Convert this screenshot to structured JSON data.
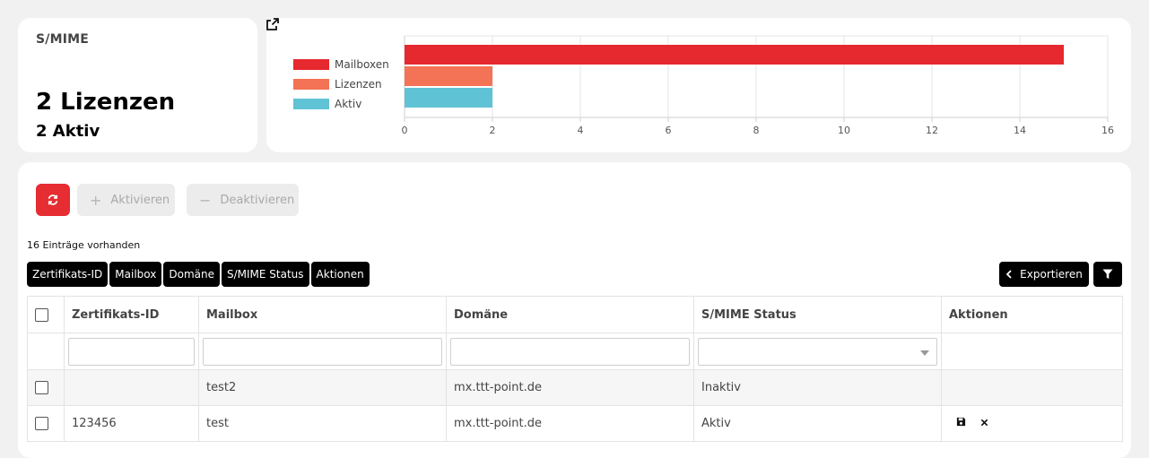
{
  "summary": {
    "label": "S/MIME",
    "licenses": "2 Lizenzen",
    "active": "2 Aktiv"
  },
  "chart_data": {
    "type": "bar",
    "orientation": "horizontal",
    "categories": [
      "Mailboxen",
      "Lizenzen",
      "Aktiv"
    ],
    "values": [
      15,
      2,
      2
    ],
    "colors": [
      "#e5292e",
      "#f47255",
      "#60c3d5"
    ],
    "xlim": [
      0,
      16
    ],
    "xticks": [
      "0",
      "2",
      "4",
      "6",
      "8",
      "10",
      "12",
      "14",
      "16"
    ],
    "legend": [
      {
        "name": "Mailboxen",
        "color": "#e5292e"
      },
      {
        "name": "Lizenzen",
        "color": "#f47255"
      },
      {
        "name": "Aktiv",
        "color": "#60c3d5"
      }
    ],
    "legend_position": "left",
    "grid": true,
    "title": "",
    "xlabel": "",
    "ylabel": ""
  },
  "icons": {
    "external_link": "external-link-icon",
    "refresh": "refresh-icon",
    "filter": "filter-icon",
    "save": "save-icon",
    "delete": "close-icon"
  },
  "toolbar": {
    "activate_label": "Aktivieren",
    "deactivate_label": "Deaktivieren",
    "export_label": "Exportieren"
  },
  "entries_count": "16 Einträge vorhanden",
  "column_chips": [
    "Zertifikats-ID",
    "Mailbox",
    "Domäne",
    "S/MIME Status",
    "Aktionen"
  ],
  "table": {
    "headers": [
      "Zertifikats-ID",
      "Mailbox",
      "Domäne",
      "S/MIME Status",
      "Aktionen"
    ],
    "rows": [
      {
        "id": "",
        "mailbox": "test2",
        "domain": "mx.ttt-point.de",
        "status": "Inaktiv"
      },
      {
        "id": "123456",
        "mailbox": "test",
        "domain": "mx.ttt-point.de",
        "status": "Aktiv"
      }
    ]
  },
  "accent_color": "#e52d32"
}
